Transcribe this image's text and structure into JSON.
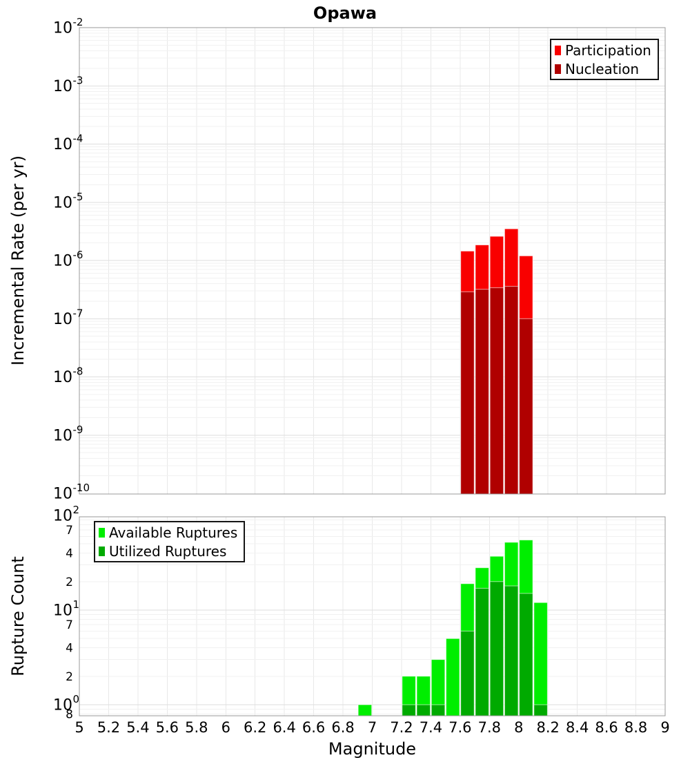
{
  "figure_title": "Opawa",
  "chart_data": [
    {
      "type": "bar",
      "panel": "top",
      "title": "Opawa",
      "ylabel": "Incremental Rate (per yr)",
      "y_scale": "log",
      "ylim": [
        1e-10,
        0.01
      ],
      "grid": true,
      "legend_position": "top-right",
      "bin_width": 0.1,
      "bins": [
        7.65,
        7.75,
        7.85,
        7.95,
        8.05
      ],
      "series": [
        {
          "name": "Participation",
          "color": "#f90000",
          "values": [
            1.45e-06,
            1.85e-06,
            2.6e-06,
            3.5e-06,
            1.2e-06
          ]
        },
        {
          "name": "Nucleation",
          "color": "#b00000",
          "values": [
            2.9e-07,
            3.2e-07,
            3.4e-07,
            3.6e-07,
            1e-07
          ]
        }
      ],
      "y_tick_exponents": [
        "-2",
        "-3",
        "-4",
        "-5",
        "-6",
        "-7",
        "-8",
        "-9",
        "-10"
      ]
    },
    {
      "type": "bar",
      "panel": "bottom",
      "ylabel": "Rupture Count",
      "xlabel": "Magnitude",
      "y_scale": "log",
      "ylim": [
        0.76,
        96
      ],
      "xlim": [
        5,
        9
      ],
      "grid": true,
      "legend_position": "top-left",
      "bin_width": 0.1,
      "bins": [
        6.95,
        7.25,
        7.35,
        7.45,
        7.55,
        7.65,
        7.75,
        7.85,
        7.95,
        8.05,
        8.15
      ],
      "series": [
        {
          "name": "Available Ruptures",
          "color": "#00ee00",
          "values": [
            1,
            2,
            2,
            3,
            5,
            19,
            28,
            37,
            52,
            55,
            12
          ]
        },
        {
          "name": "Utilized Ruptures",
          "color": "#00aa00",
          "values": [
            0,
            1,
            1,
            1,
            0,
            6,
            17,
            20,
            18,
            15,
            1
          ]
        }
      ],
      "y_major_ticks": [
        {
          "value": 100,
          "exponent": "2"
        },
        {
          "value": 10,
          "exponent": "1"
        },
        {
          "value": 1,
          "exponent": "0"
        }
      ],
      "y_minor_tick_labels": [
        {
          "value": 70,
          "label": "7"
        },
        {
          "value": 40,
          "label": "4"
        },
        {
          "value": 20,
          "label": "2"
        },
        {
          "value": 7,
          "label": "7"
        },
        {
          "value": 4,
          "label": "4"
        },
        {
          "value": 2,
          "label": "2"
        },
        {
          "value": 0.8,
          "label": "8"
        }
      ],
      "x_ticks": [
        {
          "value": 5,
          "label": "5"
        },
        {
          "value": 5.2,
          "label": "5.2"
        },
        {
          "value": 5.4,
          "label": "5.4"
        },
        {
          "value": 5.6,
          "label": "5.6"
        },
        {
          "value": 5.8,
          "label": "5.8"
        },
        {
          "value": 6,
          "label": "6"
        },
        {
          "value": 6.2,
          "label": "6.2"
        },
        {
          "value": 6.4,
          "label": "6.4"
        },
        {
          "value": 6.6,
          "label": "6.6"
        },
        {
          "value": 6.8,
          "label": "6.8"
        },
        {
          "value": 7,
          "label": "7"
        },
        {
          "value": 7.2,
          "label": "7.2"
        },
        {
          "value": 7.4,
          "label": "7.4"
        },
        {
          "value": 7.6,
          "label": "7.6"
        },
        {
          "value": 7.8,
          "label": "7.8"
        },
        {
          "value": 8,
          "label": "8"
        },
        {
          "value": 8.2,
          "label": "8.2"
        },
        {
          "value": 8.4,
          "label": "8.4"
        },
        {
          "value": 8.6,
          "label": "8.6"
        },
        {
          "value": 8.8,
          "label": "8.8"
        },
        {
          "value": 9,
          "label": "9"
        }
      ]
    }
  ]
}
